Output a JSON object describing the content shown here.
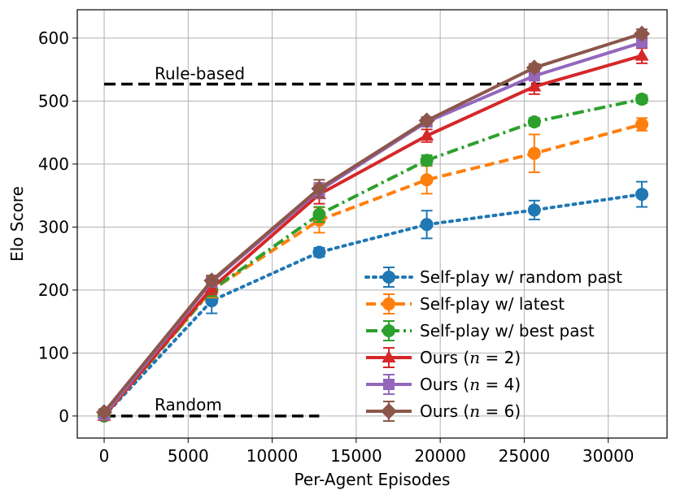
{
  "chart_data": {
    "type": "line",
    "title": "",
    "xlabel": "Per-Agent Episodes",
    "ylabel": "Elo Score",
    "xlim": [
      -1600,
      33500
    ],
    "ylim": [
      -35,
      645
    ],
    "xticks": [
      0,
      5000,
      10000,
      15000,
      20000,
      25000,
      30000
    ],
    "yticks": [
      0,
      100,
      200,
      300,
      400,
      500,
      600
    ],
    "grid": true,
    "legend_position": "lower-right",
    "x": [
      0,
      6400,
      12800,
      19200,
      25600,
      32000
    ],
    "series": [
      {
        "name": "Self-play w/ random past",
        "color": "#1f77b4",
        "dash": "dotted",
        "marker": "circle",
        "values": [
          0,
          183,
          260,
          304,
          327,
          352
        ],
        "errors": [
          5,
          20,
          7,
          22,
          15,
          20
        ]
      },
      {
        "name": "Self-play w/ latest",
        "color": "#ff7f0e",
        "dash": "dashed",
        "marker": "circle",
        "values": [
          0,
          200,
          311,
          375,
          417,
          463
        ],
        "errors": [
          5,
          12,
          20,
          22,
          30,
          10
        ]
      },
      {
        "name": "Self-play w/ best past",
        "color": "#2ca02c",
        "dash": "dashdot",
        "marker": "circle",
        "values": [
          0,
          200,
          320,
          406,
          467,
          503
        ],
        "errors": [
          5,
          10,
          12,
          8,
          6,
          6
        ]
      },
      {
        "name": "Ours (n = 2)",
        "name_prefix": "Ours (",
        "name_var": "n",
        "name_suffix": " = 2)",
        "color": "#d62728",
        "dash": "solid",
        "marker": "triangle",
        "values": [
          0,
          203,
          352,
          445,
          523,
          572
        ],
        "errors": [
          5,
          10,
          15,
          10,
          12,
          12
        ]
      },
      {
        "name": "Ours (n = 4)",
        "name_prefix": "Ours (",
        "name_var": "n",
        "name_suffix": " = 4)",
        "color": "#9467bd",
        "dash": "solid",
        "marker": "square",
        "values": [
          2,
          213,
          358,
          467,
          540,
          593
        ],
        "errors": [
          5,
          8,
          12,
          6,
          6,
          6
        ]
      },
      {
        "name": "Ours (n = 6)",
        "name_prefix": "Ours (",
        "name_var": "n",
        "name_suffix": " = 6)",
        "color": "#8c564b",
        "dash": "solid",
        "marker": "diamond",
        "values": [
          6,
          215,
          361,
          469,
          553,
          607
        ],
        "errors": [
          5,
          8,
          14,
          5,
          6,
          7
        ]
      }
    ],
    "reference_lines": [
      {
        "label": "Rule-based",
        "y": 527,
        "x_start": 0,
        "x_end": 32000
      },
      {
        "label": "Random",
        "y": 0,
        "x_start": 0,
        "x_end": 12800
      }
    ]
  }
}
